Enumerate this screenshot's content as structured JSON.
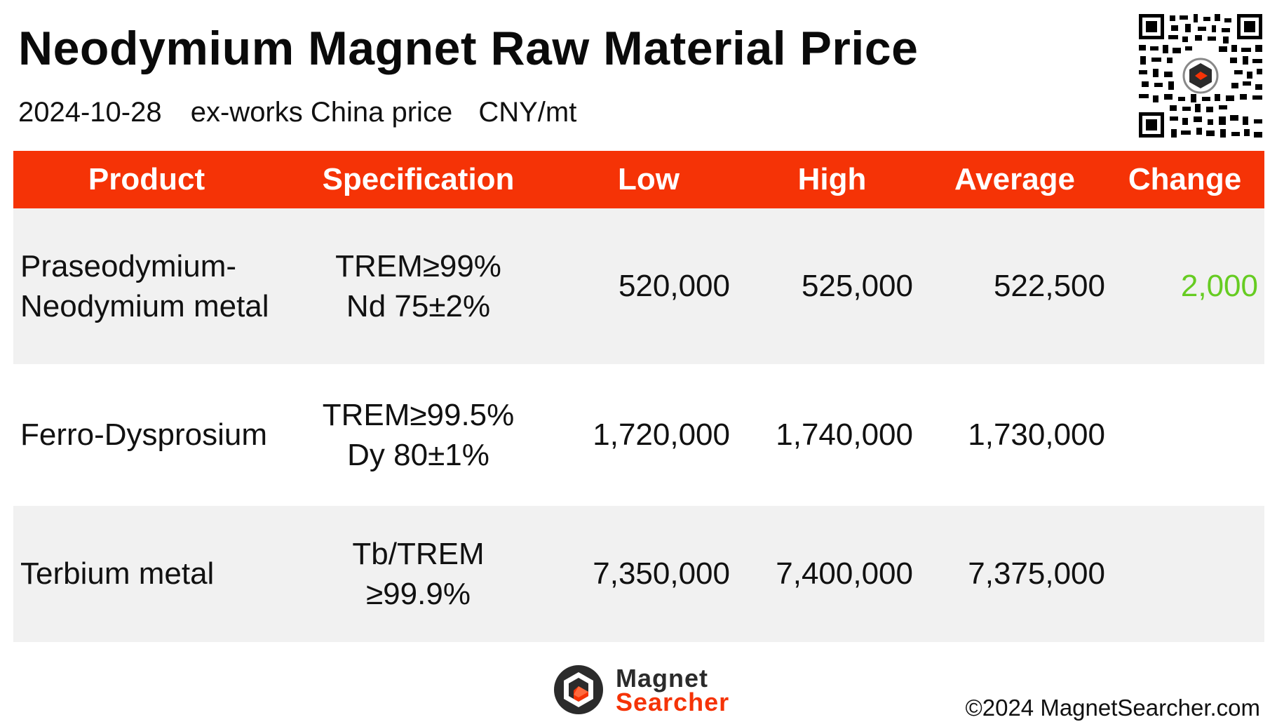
{
  "title": "Neodymium Magnet Raw Material Price",
  "subtitle": {
    "date": "2024-10-28",
    "basis": "ex-works China price",
    "unit": "CNY/mt"
  },
  "table": {
    "headers": [
      "Product",
      "Specification",
      "Low",
      "High",
      "Average",
      "Change"
    ],
    "rows": [
      {
        "product_line1": "Praseodymium-",
        "product_line2": "Neodymium metal",
        "spec_line1": "TREM≥99%",
        "spec_line2": "Nd 75±2%",
        "low": "520,000",
        "high": "525,000",
        "average": "522,500",
        "change": "2,000"
      },
      {
        "product_line1": "Ferro-Dysprosium",
        "product_line2": "",
        "spec_line1": "TREM≥99.5%",
        "spec_line2": "Dy 80±1%",
        "low": "1,720,000",
        "high": "1,740,000",
        "average": "1,730,000",
        "change": ""
      },
      {
        "product_line1": "Terbium metal",
        "product_line2": "",
        "spec_line1": "Tb/TREM",
        "spec_line2": "≥99.9%",
        "low": "7,350,000",
        "high": "7,400,000",
        "average": "7,375,000",
        "change": ""
      }
    ]
  },
  "brand": {
    "line1": "Magnet",
    "line2": "Searcher",
    "logo_icon": "magnet-searcher-logo-icon",
    "qr_icon": "qr-code-icon"
  },
  "copyright": "©2024 MagnetSearcher.com",
  "colors": {
    "accent": "#f53306",
    "header_text": "#ffffff",
    "row_shade": "#f1f1f1",
    "change_positive": "#66cc22"
  }
}
